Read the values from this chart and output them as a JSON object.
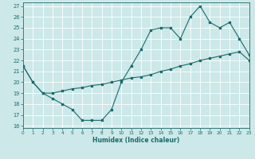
{
  "xlabel": "Humidex (Indice chaleur)",
  "background_color": "#cce8e8",
  "grid_color": "#ffffff",
  "line_color": "#1a6b6b",
  "line1_x": [
    0,
    1,
    2,
    3,
    4,
    5,
    6,
    7,
    8,
    9,
    10,
    11,
    12,
    13,
    14,
    15,
    16,
    17,
    18,
    19,
    20,
    21,
    22,
    23
  ],
  "line1_y": [
    21.5,
    20.0,
    19.0,
    18.5,
    18.0,
    17.5,
    16.5,
    16.5,
    16.5,
    17.5,
    20.0,
    21.5,
    23.0,
    24.8,
    25.0,
    25.0,
    24.0,
    26.0,
    27.0,
    25.5,
    25.0,
    25.5,
    24.0,
    22.5
  ],
  "line2_x": [
    0,
    1,
    2,
    3,
    4,
    5,
    6,
    7,
    8,
    9,
    10,
    11,
    12,
    13,
    14,
    15,
    16,
    17,
    18,
    19,
    20,
    21,
    22,
    23
  ],
  "line2_y": [
    21.5,
    20.0,
    19.0,
    19.0,
    19.2,
    19.4,
    19.5,
    19.7,
    19.8,
    20.0,
    20.2,
    20.4,
    20.5,
    20.7,
    21.0,
    21.2,
    21.5,
    21.7,
    22.0,
    22.2,
    22.4,
    22.6,
    22.8,
    22.0
  ],
  "xlim": [
    0,
    23
  ],
  "ylim": [
    15.8,
    27.3
  ],
  "yticks": [
    16,
    17,
    18,
    19,
    20,
    21,
    22,
    23,
    24,
    25,
    26,
    27
  ],
  "xticks": [
    0,
    1,
    2,
    3,
    4,
    5,
    6,
    7,
    8,
    9,
    10,
    11,
    12,
    13,
    14,
    15,
    16,
    17,
    18,
    19,
    20,
    21,
    22,
    23
  ],
  "xtick_labels": [
    "0",
    "1",
    "2",
    "3",
    "4",
    "5",
    "6",
    "7",
    "8",
    "9",
    "10",
    "11",
    "12",
    "13",
    "14",
    "15",
    "16",
    "17",
    "18",
    "19",
    "20",
    "21",
    "22",
    "23"
  ]
}
